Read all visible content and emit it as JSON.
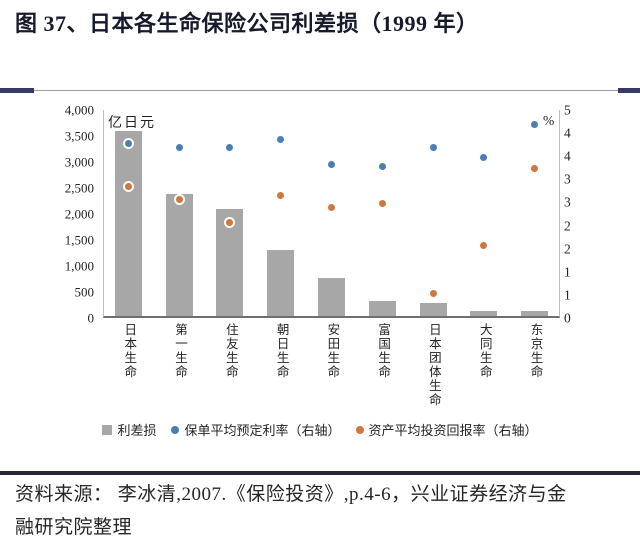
{
  "figure": {
    "title": "图 37、日本各生命保险公司利差损（1999 年）",
    "source_lines": [
      "资料来源： 李冰清,2007.《保险投资》,p.4-6，兴业证券经济与金",
      "融研究院整理"
    ]
  },
  "chart_data": {
    "type": "bar",
    "title": "日本各生命保险公司利差损（1999 年）",
    "categories": [
      "日本生命",
      "第一生命",
      "住友生命",
      "朝日生命",
      "安田生命",
      "富国生命",
      "日本团体生命",
      "大同生命",
      "东京生命"
    ],
    "series": [
      {
        "name": "利差损",
        "type": "bar",
        "axis": "left",
        "marker": "square",
        "color": "#A7A7A7",
        "values": [
          3600,
          2390,
          2100,
          1310,
          760,
          330,
          290,
          140,
          130
        ]
      },
      {
        "name": "保单平均预定利率（右轴）",
        "type": "scatter",
        "axis": "right",
        "marker": "circle",
        "color": "#4A7EB5",
        "values": [
          4.2,
          4.1,
          4.1,
          4.3,
          3.7,
          3.65,
          4.1,
          3.85,
          4.65
        ]
      },
      {
        "name": "资产平均投资回报率（右轴）",
        "type": "scatter",
        "axis": "right",
        "marker": "circle",
        "color": "#D0763E",
        "values": [
          3.15,
          2.85,
          2.3,
          2.95,
          2.65,
          2.75,
          0.6,
          1.75,
          3.6
        ]
      }
    ],
    "left_axis": {
      "title": "亿日元",
      "min": 0,
      "max": 4000,
      "tick_labels": [
        "4,000",
        "3,500",
        "3,000",
        "2,500",
        "2,000",
        "1,500",
        "1,000",
        "500",
        "0"
      ]
    },
    "right_axis": {
      "title": "%",
      "min": 0,
      "max": 5,
      "tick_labels": [
        "5",
        "4",
        "4",
        "3",
        "3",
        "2",
        "2",
        "1",
        "1",
        "0"
      ]
    },
    "legend_position": "bottom",
    "grid": false
  }
}
